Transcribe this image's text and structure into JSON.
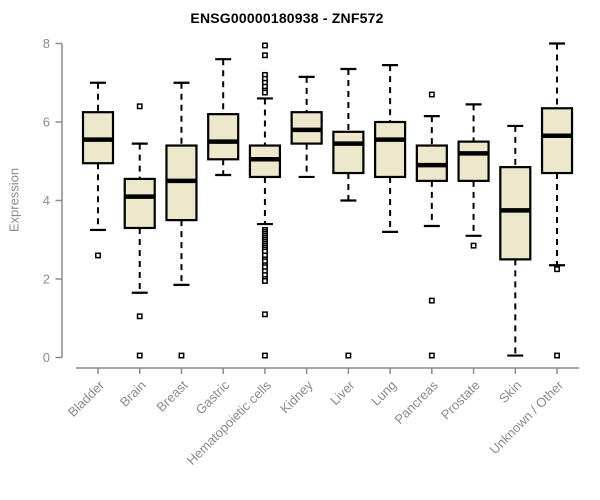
{
  "page": {
    "background": "#ffffff"
  },
  "chart_data": {
    "type": "boxplot",
    "title": "ENSG00000180938 - ZNF572",
    "ylabel": "Expression",
    "ylim": [
      0,
      8
    ],
    "yticks": [
      0,
      2,
      4,
      6,
      8
    ],
    "grid": false,
    "legend": "none",
    "colors": {
      "box_fill": "#ede7cc",
      "box_stroke": "#000000",
      "median": "#000000",
      "whisker": "#000000",
      "outlier_stroke": "#000000",
      "outlier_fill": "#ffffff",
      "axis": "#8c8c8c",
      "tick_label": "#8c8c8c",
      "title": "#000000"
    },
    "categories": [
      "Bladder",
      "Brain",
      "Breast",
      "Gastric",
      "Hematopoietic cells",
      "Kidney",
      "Liver",
      "Lung",
      "Pancreas",
      "Prostate",
      "Skin",
      "Unknown / Other"
    ],
    "series": [
      {
        "name": "Bladder",
        "low": 3.25,
        "q1": 4.95,
        "median": 5.55,
        "q3": 6.25,
        "high": 7.0,
        "outliers": [
          2.6
        ]
      },
      {
        "name": "Brain",
        "low": 1.65,
        "q1": 3.3,
        "median": 4.1,
        "q3": 4.55,
        "high": 5.45,
        "outliers": [
          6.4,
          1.05,
          0.05
        ]
      },
      {
        "name": "Breast",
        "low": 1.85,
        "q1": 3.5,
        "median": 4.5,
        "q3": 5.4,
        "high": 7.0,
        "outliers": [
          0.05
        ]
      },
      {
        "name": "Gastric",
        "low": 4.65,
        "q1": 5.05,
        "median": 5.5,
        "q3": 6.2,
        "high": 7.6,
        "outliers": []
      },
      {
        "name": "Hematopoietic cells",
        "low": 3.4,
        "q1": 4.6,
        "median": 5.05,
        "q3": 5.4,
        "high": 6.6,
        "outliers": [
          7.95,
          7.7,
          7.2,
          7.1,
          7.0,
          6.9,
          6.8,
          6.75,
          3.25,
          3.2,
          3.15,
          3.1,
          3.05,
          3.0,
          2.95,
          2.9,
          2.85,
          2.8,
          2.75,
          2.7,
          2.6,
          2.5,
          2.45,
          2.35,
          2.3,
          2.2,
          2.1,
          2.0,
          1.95,
          1.1,
          0.05
        ]
      },
      {
        "name": "Kidney",
        "low": 4.6,
        "q1": 5.45,
        "median": 5.8,
        "q3": 6.25,
        "high": 7.15,
        "outliers": []
      },
      {
        "name": "Liver",
        "low": 4.0,
        "q1": 4.7,
        "median": 5.45,
        "q3": 5.75,
        "high": 7.35,
        "outliers": [
          0.05
        ]
      },
      {
        "name": "Lung",
        "low": 3.2,
        "q1": 4.6,
        "median": 5.55,
        "q3": 6.0,
        "high": 7.45,
        "outliers": []
      },
      {
        "name": "Pancreas",
        "low": 3.35,
        "q1": 4.5,
        "median": 4.9,
        "q3": 5.4,
        "high": 6.15,
        "outliers": [
          6.7,
          1.45,
          0.05
        ]
      },
      {
        "name": "Prostate",
        "low": 3.1,
        "q1": 4.5,
        "median": 5.2,
        "q3": 5.5,
        "high": 6.45,
        "outliers": [
          2.85
        ]
      },
      {
        "name": "Skin",
        "low": 0.05,
        "q1": 2.5,
        "median": 3.75,
        "q3": 4.85,
        "high": 5.9,
        "outliers": []
      },
      {
        "name": "Unknown / Other",
        "low": 2.35,
        "q1": 4.7,
        "median": 5.65,
        "q3": 6.35,
        "high": 8.0,
        "outliers": [
          2.25,
          0.05
        ]
      }
    ]
  }
}
